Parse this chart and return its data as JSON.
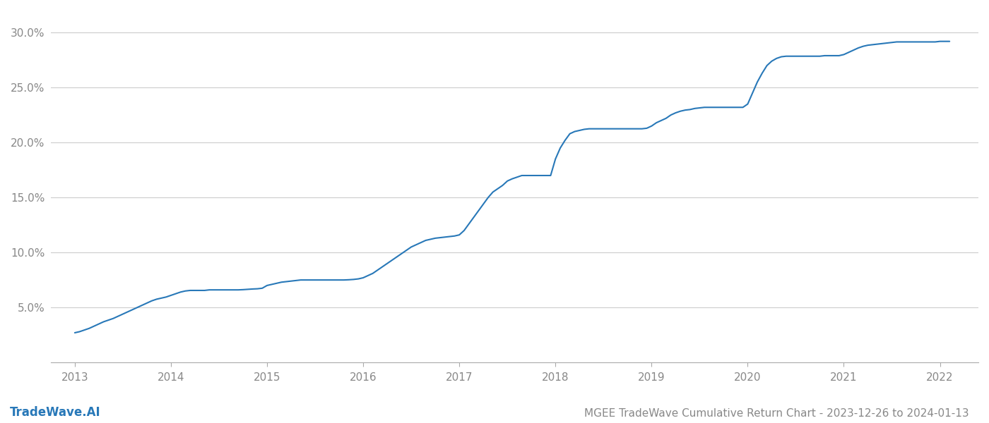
{
  "title": "MGEE TradeWave Cumulative Return Chart - 2023-12-26 to 2024-01-13",
  "watermark": "TradeWave.AI",
  "line_color": "#2878b8",
  "background_color": "#ffffff",
  "grid_color": "#cccccc",
  "x_values": [
    2013.0,
    2013.05,
    2013.1,
    2013.15,
    2013.2,
    2013.25,
    2013.3,
    2013.35,
    2013.4,
    2013.45,
    2013.5,
    2013.55,
    2013.6,
    2013.65,
    2013.7,
    2013.75,
    2013.8,
    2013.85,
    2013.9,
    2013.95,
    2014.0,
    2014.05,
    2014.1,
    2014.15,
    2014.2,
    2014.25,
    2014.3,
    2014.35,
    2014.4,
    2014.45,
    2014.5,
    2014.55,
    2014.6,
    2014.65,
    2014.7,
    2014.75,
    2014.8,
    2014.85,
    2014.9,
    2014.95,
    2015.0,
    2015.05,
    2015.1,
    2015.15,
    2015.2,
    2015.25,
    2015.3,
    2015.35,
    2015.4,
    2015.45,
    2015.5,
    2015.55,
    2015.6,
    2015.65,
    2015.7,
    2015.75,
    2015.8,
    2015.85,
    2015.9,
    2015.95,
    2016.0,
    2016.05,
    2016.1,
    2016.15,
    2016.2,
    2016.25,
    2016.3,
    2016.35,
    2016.4,
    2016.45,
    2016.5,
    2016.55,
    2016.6,
    2016.65,
    2016.7,
    2016.75,
    2016.8,
    2016.85,
    2016.9,
    2016.95,
    2017.0,
    2017.05,
    2017.1,
    2017.15,
    2017.2,
    2017.25,
    2017.3,
    2017.35,
    2017.4,
    2017.45,
    2017.5,
    2017.55,
    2017.6,
    2017.65,
    2017.7,
    2017.75,
    2017.8,
    2017.85,
    2017.9,
    2017.95,
    2018.0,
    2018.05,
    2018.1,
    2018.15,
    2018.2,
    2018.25,
    2018.3,
    2018.35,
    2018.4,
    2018.45,
    2018.5,
    2018.55,
    2018.6,
    2018.65,
    2018.7,
    2018.75,
    2018.8,
    2018.85,
    2018.9,
    2018.95,
    2019.0,
    2019.05,
    2019.1,
    2019.15,
    2019.2,
    2019.25,
    2019.3,
    2019.35,
    2019.4,
    2019.45,
    2019.5,
    2019.55,
    2019.6,
    2019.65,
    2019.7,
    2019.75,
    2019.8,
    2019.85,
    2019.9,
    2019.95,
    2020.0,
    2020.05,
    2020.1,
    2020.15,
    2020.2,
    2020.25,
    2020.3,
    2020.35,
    2020.4,
    2020.45,
    2020.5,
    2020.55,
    2020.6,
    2020.65,
    2020.7,
    2020.75,
    2020.8,
    2020.85,
    2020.9,
    2020.95,
    2021.0,
    2021.05,
    2021.1,
    2021.15,
    2021.2,
    2021.25,
    2021.3,
    2021.35,
    2021.4,
    2021.45,
    2021.5,
    2021.55,
    2021.6,
    2021.65,
    2021.7,
    2021.75,
    2021.8,
    2021.85,
    2021.9,
    2021.95,
    2022.0,
    2022.05,
    2022.1
  ],
  "y_values": [
    2.7,
    2.8,
    2.95,
    3.1,
    3.3,
    3.5,
    3.7,
    3.85,
    4.0,
    4.2,
    4.4,
    4.6,
    4.8,
    5.0,
    5.2,
    5.4,
    5.6,
    5.75,
    5.85,
    5.95,
    6.1,
    6.25,
    6.4,
    6.5,
    6.55,
    6.55,
    6.55,
    6.55,
    6.6,
    6.6,
    6.6,
    6.6,
    6.6,
    6.6,
    6.6,
    6.62,
    6.65,
    6.68,
    6.7,
    6.75,
    7.0,
    7.1,
    7.2,
    7.3,
    7.35,
    7.4,
    7.45,
    7.5,
    7.5,
    7.5,
    7.5,
    7.5,
    7.5,
    7.5,
    7.5,
    7.5,
    7.5,
    7.52,
    7.55,
    7.6,
    7.7,
    7.9,
    8.1,
    8.4,
    8.7,
    9.0,
    9.3,
    9.6,
    9.9,
    10.2,
    10.5,
    10.7,
    10.9,
    11.1,
    11.2,
    11.3,
    11.35,
    11.4,
    11.45,
    11.5,
    11.6,
    12.0,
    12.6,
    13.2,
    13.8,
    14.4,
    15.0,
    15.5,
    15.8,
    16.1,
    16.5,
    16.7,
    16.85,
    17.0,
    17.0,
    17.0,
    17.0,
    17.0,
    17.0,
    17.0,
    18.5,
    19.5,
    20.2,
    20.8,
    21.0,
    21.1,
    21.2,
    21.25,
    21.25,
    21.25,
    21.25,
    21.25,
    21.25,
    21.25,
    21.25,
    21.25,
    21.25,
    21.25,
    21.25,
    21.3,
    21.5,
    21.8,
    22.0,
    22.2,
    22.5,
    22.7,
    22.85,
    22.95,
    23.0,
    23.1,
    23.15,
    23.2,
    23.2,
    23.2,
    23.2,
    23.2,
    23.2,
    23.2,
    23.2,
    23.2,
    23.5,
    24.5,
    25.5,
    26.3,
    27.0,
    27.4,
    27.65,
    27.8,
    27.85,
    27.85,
    27.85,
    27.85,
    27.85,
    27.85,
    27.85,
    27.85,
    27.9,
    27.9,
    27.9,
    27.9,
    28.0,
    28.2,
    28.4,
    28.6,
    28.75,
    28.85,
    28.9,
    28.95,
    29.0,
    29.05,
    29.1,
    29.15,
    29.15,
    29.15,
    29.15,
    29.15,
    29.15,
    29.15,
    29.15,
    29.15,
    29.2,
    29.2,
    29.2
  ],
  "xlim": [
    2012.75,
    2022.4
  ],
  "ylim": [
    0.0,
    32.0
  ],
  "yticks": [
    5.0,
    10.0,
    15.0,
    20.0,
    25.0,
    30.0
  ],
  "xticks": [
    2013,
    2014,
    2015,
    2016,
    2017,
    2018,
    2019,
    2020,
    2021,
    2022
  ],
  "tick_color": "#888888",
  "title_fontsize": 11,
  "watermark_fontsize": 12,
  "line_width": 1.5
}
